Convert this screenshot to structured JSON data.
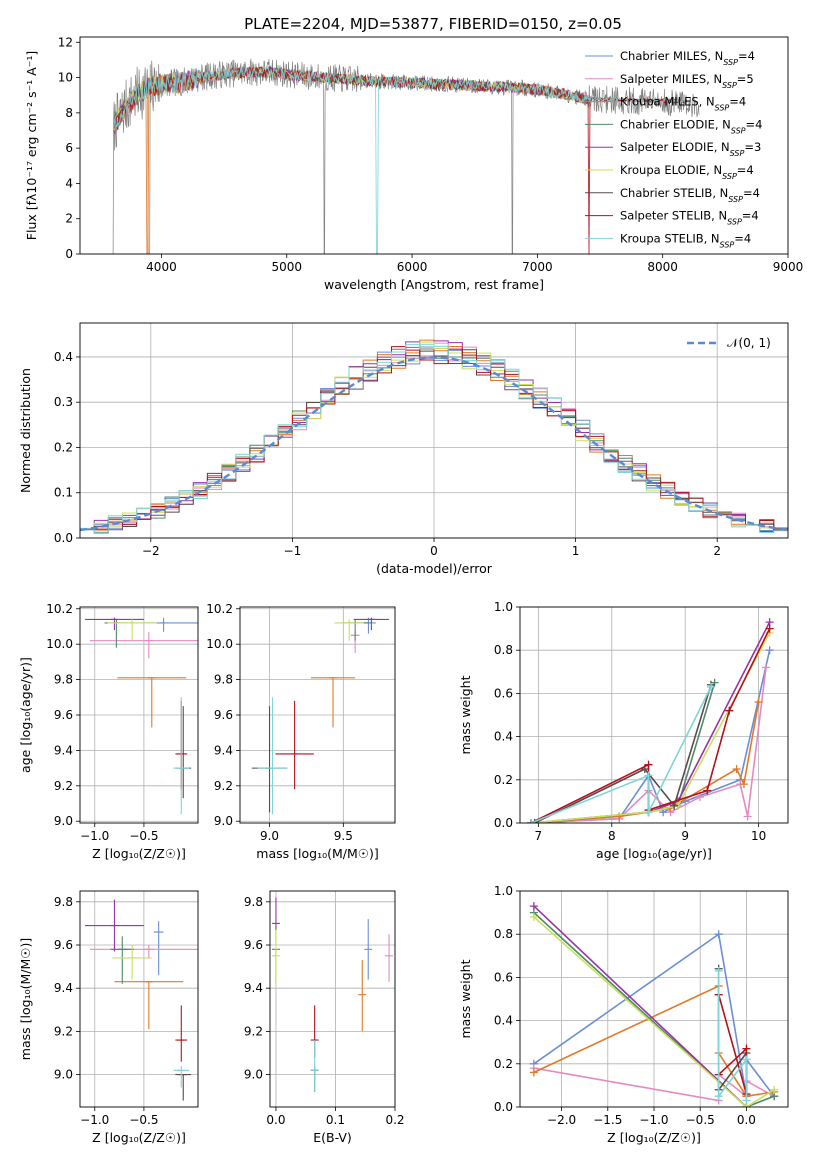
{
  "figure": {
    "title": "PLATE=2204, MJD=53877, FIBERID=0150, z=0.05"
  },
  "colors": {
    "c0": "#6a8fd6",
    "c1": "#e58ac0",
    "c2": "#e07a2a",
    "c3": "#4f8a6b",
    "c4": "#9933aa",
    "c5": "#c9e05a",
    "c6": "#5a4a4a",
    "c7": "#b3121c",
    "c8": "#7fd4d6",
    "data": "#808080",
    "norm": "#5b8ad4"
  },
  "chart_data": [
    {
      "id": "spectrum",
      "type": "line",
      "xlabel": "wavelength [Angstrom, rest frame]",
      "ylabel": "Flux [fλ10⁻¹⁷ erg cm⁻² s⁻¹ A⁻¹]",
      "xlim": [
        3350,
        9000
      ],
      "ylim": [
        0,
        12.3
      ],
      "xticks": [
        4000,
        5000,
        6000,
        7000,
        8000,
        9000
      ],
      "yticks": [
        0,
        2,
        4,
        6,
        8,
        10,
        12
      ],
      "legend": "top-right",
      "continuum_x": [
        3600,
        3700,
        3800,
        3900,
        4000,
        4100,
        4200,
        4300,
        4500,
        4700,
        4900,
        5100,
        5300,
        5500,
        5700,
        6000,
        6300,
        6600,
        6900,
        7200,
        7400
      ],
      "continuum_y": [
        7.0,
        8.2,
        9.0,
        9.5,
        9.6,
        9.7,
        9.8,
        10.0,
        10.2,
        10.3,
        10.3,
        10.1,
        10.0,
        9.9,
        9.8,
        9.7,
        9.6,
        9.5,
        9.4,
        9.1,
        8.8
      ],
      "series": [
        {
          "name": "Chabrier MILES, N",
          "sub": "SSP",
          "n": "=4",
          "color": "c0",
          "xmax": 8150
        },
        {
          "name": "Salpeter MILES, N",
          "sub": "SSP",
          "n": "=5",
          "color": "c1",
          "xmax": 8150
        },
        {
          "name": "Kroupa MILES, N",
          "sub": "SSP",
          "n": "=4",
          "color": "c2",
          "xmax": 8150
        },
        {
          "name": "Chabrier ELODIE, N",
          "sub": "SSP",
          "n": "=4",
          "color": "c3",
          "xmax": 7400
        },
        {
          "name": "Salpeter ELODIE, N",
          "sub": "SSP",
          "n": "=3",
          "color": "c4",
          "xmax": 7400
        },
        {
          "name": "Kroupa ELODIE, N",
          "sub": "SSP",
          "n": "=4",
          "color": "c5",
          "xmax": 7400
        },
        {
          "name": "Chabrier STELIB, N",
          "sub": "SSP",
          "n": "=4",
          "color": "c6",
          "xmax": 8200
        },
        {
          "name": "Salpeter STELIB, N",
          "sub": "SSP",
          "n": "=4",
          "color": "c7",
          "xmax": 8200
        },
        {
          "name": "Kroupa STELIB, N",
          "sub": "SSP",
          "n": "=4",
          "color": "c8",
          "xmax": 8200
        }
      ]
    },
    {
      "id": "residuals",
      "type": "line",
      "xlabel": "(data-model)/error",
      "ylabel": "Normed distribution",
      "xlim": [
        -2.5,
        2.5
      ],
      "ylim": [
        0,
        0.475
      ],
      "xticks": [
        -2,
        -1,
        0,
        1,
        2
      ],
      "yticks": [
        0.0,
        0.1,
        0.2,
        0.3,
        0.4
      ],
      "grid": true,
      "legend": "top-right",
      "normal_label": "𝒩(0, 1)",
      "bin_width": 0.1,
      "series_colors": [
        "c0",
        "c1",
        "c2",
        "c3",
        "c4",
        "c5",
        "c6",
        "c7",
        "c8"
      ]
    },
    {
      "id": "age_vs_z",
      "type": "scatter",
      "xlabel": "Z [log₁₀(Z/Z☉)]",
      "ylabel": "age  [log₁₀(age/yr)]",
      "xlim": [
        -1.15,
        0.05
      ],
      "ylim": [
        8.99,
        10.21
      ],
      "xticks": [
        -1.0,
        -0.5
      ],
      "yticks": [
        9.0,
        9.2,
        9.4,
        9.6,
        9.8,
        10.0,
        10.2
      ],
      "grid": true,
      "points": [
        {
          "x": -0.3,
          "y": 10.12,
          "xerr": 0.35,
          "yerr": [
            0.05,
            0.03
          ],
          "color": "c0"
        },
        {
          "x": -0.45,
          "y": 10.02,
          "xerr": 0.6,
          "yerr": [
            0.1,
            0.05
          ],
          "color": "c1"
        },
        {
          "x": -0.42,
          "y": 9.81,
          "xerr": 0.35,
          "yerr": [
            0.28,
            0.0
          ],
          "color": "c2"
        },
        {
          "x": -0.78,
          "y": 10.12,
          "xerr": 0.12,
          "yerr": [
            0.14,
            0.02
          ],
          "color": "c3"
        },
        {
          "x": -0.8,
          "y": 10.14,
          "xerr": 0.3,
          "yerr": [
            0.06,
            0.01
          ],
          "color": "c4"
        },
        {
          "x": -0.62,
          "y": 10.12,
          "xerr": 0.25,
          "yerr": [
            0.1,
            0.02
          ],
          "color": "c5"
        },
        {
          "x": -0.1,
          "y": 9.3,
          "xerr": 0.08,
          "yerr": [
            0.17,
            0.35
          ],
          "color": "c6"
        },
        {
          "x": -0.12,
          "y": 9.38,
          "xerr": 0.06,
          "yerr": [
            0.2,
            0.3
          ],
          "color": "c7"
        },
        {
          "x": -0.12,
          "y": 9.3,
          "xerr": 0.08,
          "yerr": [
            0.26,
            0.4
          ],
          "color": "c8"
        }
      ]
    },
    {
      "id": "age_vs_mass",
      "type": "scatter",
      "xlabel": "mass [log₁₀(M/M☉)]",
      "ylabel": "",
      "xlim": [
        8.8,
        9.85
      ],
      "ylim": [
        8.99,
        10.21
      ],
      "xticks": [
        9.0,
        9.5
      ],
      "yticks": [
        9.0,
        9.2,
        9.4,
        9.6,
        9.8,
        10.0,
        10.2
      ],
      "grid": true,
      "points": [
        {
          "x": 9.67,
          "y": 10.12,
          "xerr": 0.05,
          "yerr": [
            0.06,
            0.03
          ],
          "color": "c0"
        },
        {
          "x": 9.58,
          "y": 10.05,
          "xerr": 0.03,
          "yerr": [
            0.1,
            0.03
          ],
          "color": "c1"
        },
        {
          "x": 9.43,
          "y": 9.81,
          "xerr": 0.15,
          "yerr": [
            0.28,
            0.0
          ],
          "color": "c2"
        },
        {
          "x": 9.58,
          "y": 10.12,
          "xerr": 0.1,
          "yerr": [
            0.1,
            0.02
          ],
          "color": "c3"
        },
        {
          "x": 9.69,
          "y": 10.14,
          "xerr": 0.12,
          "yerr": [
            0.06,
            0.01
          ],
          "color": "c4"
        },
        {
          "x": 9.54,
          "y": 10.12,
          "xerr": 0.1,
          "yerr": [
            0.1,
            0.02
          ],
          "color": "c5"
        },
        {
          "x": 9.0,
          "y": 9.3,
          "xerr": 0.12,
          "yerr": [
            0.25,
            0.35
          ],
          "color": "c6"
        },
        {
          "x": 9.17,
          "y": 9.38,
          "xerr": 0.13,
          "yerr": [
            0.2,
            0.3
          ],
          "color": "c7"
        },
        {
          "x": 9.02,
          "y": 9.3,
          "xerr": 0.1,
          "yerr": [
            0.26,
            0.4
          ],
          "color": "c8"
        }
      ]
    },
    {
      "id": "massweight_vs_age",
      "type": "line",
      "xlabel": "age  [log₁₀(age/yr)]",
      "ylabel": "mass weight",
      "xlim": [
        6.75,
        10.4
      ],
      "ylim": [
        0,
        1.0
      ],
      "xticks": [
        7,
        8,
        9,
        10
      ],
      "yticks": [
        0.0,
        0.2,
        0.4,
        0.6,
        0.8,
        1.0
      ],
      "grid": true,
      "series": [
        {
          "color": "c0",
          "x": [
            6.9,
            8.1,
            8.5,
            8.7,
            9.0,
            9.75,
            10.15
          ],
          "y": [
            0.0,
            0.02,
            0.22,
            0.05,
            0.1,
            0.2,
            0.8
          ]
        },
        {
          "color": "c1",
          "x": [
            6.9,
            8.1,
            8.5,
            8.8,
            9.2,
            9.75,
            9.85,
            10.1
          ],
          "y": [
            0.0,
            0.02,
            0.15,
            0.05,
            0.12,
            0.18,
            0.03,
            0.72
          ]
        },
        {
          "color": "c2",
          "x": [
            6.9,
            8.1,
            8.5,
            8.8,
            9.7,
            9.8,
            10.0
          ],
          "y": [
            0.0,
            0.03,
            0.05,
            0.07,
            0.25,
            0.18,
            0.56
          ]
        },
        {
          "color": "c3",
          "x": [
            6.95,
            8.5,
            8.9,
            9.4
          ],
          "y": [
            0.0,
            0.05,
            0.08,
            0.65
          ]
        },
        {
          "color": "c4",
          "x": [
            6.9,
            8.5,
            8.9,
            10.15
          ],
          "y": [
            0.0,
            0.05,
            0.1,
            0.93
          ]
        },
        {
          "color": "c5",
          "x": [
            6.9,
            8.5,
            8.9,
            10.15
          ],
          "y": [
            0.0,
            0.05,
            0.08,
            0.88
          ]
        },
        {
          "color": "c6",
          "x": [
            6.95,
            8.45,
            8.85,
            9.35
          ],
          "y": [
            0.0,
            0.25,
            0.08,
            0.64
          ]
        },
        {
          "color": "c7",
          "x": [
            6.9,
            8.5,
            8.5,
            9.3,
            9.6,
            10.15
          ],
          "y": [
            0.0,
            0.27,
            0.06,
            0.15,
            0.52,
            0.9
          ]
        },
        {
          "color": "c8",
          "x": [
            6.9,
            8.5,
            8.5,
            9.35
          ],
          "y": [
            0.0,
            0.22,
            0.05,
            0.63
          ]
        }
      ]
    },
    {
      "id": "mass_vs_z",
      "type": "scatter",
      "xlabel": "Z [log₁₀(Z/Z☉)]",
      "ylabel": "mass [log₁₀(M/M☉)]",
      "xlim": [
        -1.15,
        0.05
      ],
      "ylim": [
        8.85,
        9.85
      ],
      "xticks": [
        -1.0,
        -0.5
      ],
      "yticks": [
        9.0,
        9.2,
        9.4,
        9.6,
        9.8
      ],
      "grid": true,
      "points": [
        {
          "x": -0.35,
          "y": 9.66,
          "xerr": 0.05,
          "yerr": [
            0.2,
            0.05
          ],
          "color": "c0"
        },
        {
          "x": -0.45,
          "y": 9.58,
          "xerr": 0.6,
          "yerr": [
            0.04,
            0.02
          ],
          "color": "c1"
        },
        {
          "x": -0.45,
          "y": 9.43,
          "xerr": 0.35,
          "yerr": [
            0.22,
            0.0
          ],
          "color": "c2"
        },
        {
          "x": -0.72,
          "y": 9.58,
          "xerr": 0.12,
          "yerr": [
            0.16,
            0.06
          ],
          "color": "c3"
        },
        {
          "x": -0.8,
          "y": 9.69,
          "xerr": 0.3,
          "yerr": [
            0.12,
            0.12
          ],
          "color": "c4"
        },
        {
          "x": -0.62,
          "y": 9.54,
          "xerr": 0.2,
          "yerr": [
            0.1,
            0.06
          ],
          "color": "c5"
        },
        {
          "x": -0.1,
          "y": 9.0,
          "xerr": 0.08,
          "yerr": [
            0.12,
            0.0
          ],
          "color": "c6"
        },
        {
          "x": -0.12,
          "y": 9.16,
          "xerr": 0.06,
          "yerr": [
            0.1,
            0.16
          ],
          "color": "c7"
        },
        {
          "x": -0.12,
          "y": 9.02,
          "xerr": 0.08,
          "yerr": [
            0.08,
            0.02
          ],
          "color": "c8"
        }
      ]
    },
    {
      "id": "mass_vs_ebv",
      "type": "scatter",
      "xlabel": "E(B-V)",
      "ylabel": "",
      "xlim": [
        -0.01,
        0.2
      ],
      "ylim": [
        8.85,
        9.85
      ],
      "xticks": [
        0.0,
        0.1,
        0.2
      ],
      "yticks": [
        9.0,
        9.2,
        9.4,
        9.6,
        9.8
      ],
      "grid": true,
      "points": [
        {
          "x": 0.155,
          "y": 9.58,
          "xerr": 0.0,
          "yerr": [
            0.14,
            0.14
          ],
          "color": "c0"
        },
        {
          "x": 0.19,
          "y": 9.55,
          "xerr": 0.0,
          "yerr": [
            0.12,
            0.1
          ],
          "color": "c1"
        },
        {
          "x": 0.145,
          "y": 9.37,
          "xerr": 0.0,
          "yerr": [
            0.17,
            0.16
          ],
          "color": "c2"
        },
        {
          "x": 0.0,
          "y": 9.58,
          "xerr": 0.0,
          "yerr": [
            0.16,
            0.0
          ],
          "color": "c3"
        },
        {
          "x": 0.0,
          "y": 9.7,
          "xerr": 0.0,
          "yerr": [
            0.08,
            0.12
          ],
          "color": "c4"
        },
        {
          "x": 0.0,
          "y": 9.55,
          "xerr": 0.0,
          "yerr": [
            0.13,
            0.12
          ],
          "color": "c5"
        },
        {
          "x": 0.065,
          "y": 9.02,
          "xerr": 0.0,
          "yerr": [
            0.1,
            0.02
          ],
          "color": "c6"
        },
        {
          "x": 0.065,
          "y": 9.16,
          "xerr": 0.0,
          "yerr": [
            0.08,
            0.16
          ],
          "color": "c7"
        },
        {
          "x": 0.065,
          "y": 9.02,
          "xerr": 0.0,
          "yerr": [
            0.1,
            0.14
          ],
          "color": "c8"
        }
      ]
    },
    {
      "id": "massweight_vs_z",
      "type": "line",
      "xlabel": "Z [log₁₀(Z/Z☉)]",
      "ylabel": "mass weight",
      "xlim": [
        -2.45,
        0.45
      ],
      "ylim": [
        0,
        1.0
      ],
      "xticks": [
        -2.0,
        -1.5,
        -1.0,
        -0.5,
        0.0
      ],
      "yticks": [
        0.0,
        0.2,
        0.4,
        0.6,
        0.8,
        1.0
      ],
      "grid": true,
      "series": [
        {
          "color": "c0",
          "x": [
            -2.3,
            -0.3,
            0.0,
            0.0,
            0.3
          ],
          "y": [
            0.2,
            0.8,
            0.05,
            0.22,
            0.05
          ]
        },
        {
          "color": "c1",
          "x": [
            -2.3,
            -0.3,
            -0.3,
            0.0,
            0.0,
            0.3
          ],
          "y": [
            0.18,
            0.03,
            0.15,
            0.05,
            0.12,
            0.05
          ]
        },
        {
          "color": "c2",
          "x": [
            -2.3,
            -0.3,
            -0.3,
            0.0,
            0.3
          ],
          "y": [
            0.16,
            0.56,
            0.25,
            0.05,
            0.07
          ]
        },
        {
          "color": "c3",
          "x": [
            -2.3,
            0.0,
            0.3
          ],
          "y": [
            0.9,
            0.0,
            0.05
          ]
        },
        {
          "color": "c4",
          "x": [
            -2.3,
            0.0
          ],
          "y": [
            0.93,
            0.0
          ]
        },
        {
          "color": "c5",
          "x": [
            -2.3,
            0.0,
            0.3
          ],
          "y": [
            0.88,
            0.0,
            0.08
          ]
        },
        {
          "color": "c6",
          "x": [
            -0.3,
            -0.3,
            0.0
          ],
          "y": [
            0.64,
            0.08,
            0.25
          ]
        },
        {
          "color": "c7",
          "x": [
            -0.3,
            0.0,
            0.0,
            -0.3
          ],
          "y": [
            0.15,
            0.27,
            0.06,
            0.52
          ]
        },
        {
          "color": "c8",
          "x": [
            -0.3,
            -0.3,
            0.0,
            0.0
          ],
          "y": [
            0.63,
            0.05,
            0.22,
            0.03
          ]
        }
      ]
    }
  ]
}
